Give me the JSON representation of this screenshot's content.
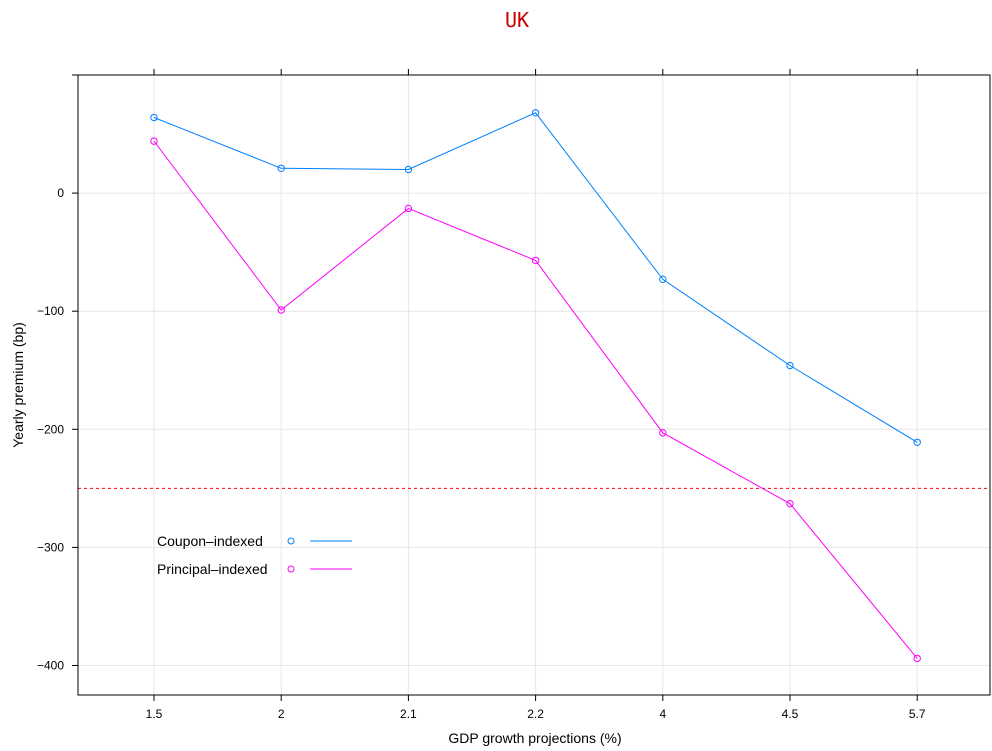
{
  "chart_data": {
    "type": "line",
    "title": "UK",
    "xlabel": "GDP growth projections (%)",
    "ylabel": "Yearly premium (bp)",
    "categories": [
      "1.5",
      "2",
      "2.1",
      "2.2",
      "4",
      "4.5",
      "5.7"
    ],
    "yticks": [
      0,
      -100,
      -200,
      -300,
      -400
    ],
    "ylim": [
      -425,
      100
    ],
    "grid": true,
    "legend_position": "bottom-left",
    "reference_line": {
      "y": -250,
      "color": "#ff0000",
      "style": "dashed"
    },
    "series": [
      {
        "name": "Coupon–indexed",
        "color": "#0080ff",
        "values": [
          64,
          21,
          20,
          68,
          -73,
          -146,
          -211
        ]
      },
      {
        "name": "Principal–indexed",
        "color": "#ff00ff",
        "values": [
          44,
          -99,
          -13,
          -57,
          -203,
          -263,
          -394
        ]
      }
    ]
  }
}
